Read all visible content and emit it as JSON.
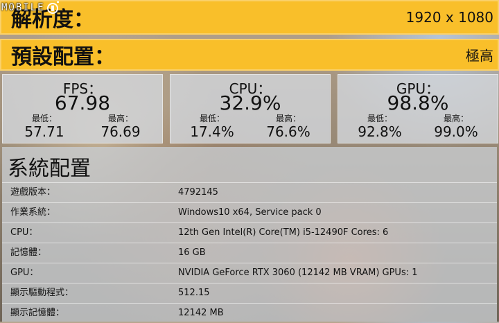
{
  "brand": {
    "logo_text": "MOBILE"
  },
  "resolution": {
    "label": "解析度：",
    "value": "1920 x 1080"
  },
  "preset": {
    "label": "預設配置：",
    "value": "極高"
  },
  "stats": {
    "fps": {
      "title": "FPS：",
      "value": "67.98",
      "min_label": "最低：",
      "min": "57.71",
      "max_label": "最高：",
      "max": "76.69"
    },
    "cpu": {
      "title": "CPU：",
      "value": "32.9%",
      "min_label": "最低：",
      "min": "17.4%",
      "max_label": "最高：",
      "max": "76.6%"
    },
    "gpu": {
      "title": "GPU：",
      "value": "98.8%",
      "min_label": "最低：",
      "min": "92.8%",
      "max_label": "最高：",
      "max": "99.0%"
    }
  },
  "system": {
    "title": "系統配置",
    "rows": [
      {
        "key": "遊戲版本：",
        "value": "4792145"
      },
      {
        "key": "作業系統：",
        "value": "Windows10 x64, Service pack 0"
      },
      {
        "key": "CPU：",
        "value": "12th Gen Intel(R) Core(TM) i5-12490F Cores: 6"
      },
      {
        "key": "記憶體：",
        "value": "16 GB"
      },
      {
        "key": "GPU：",
        "value": "NVIDIA GeForce RTX 3060 (12142 MB VRAM) GPUs: 1"
      },
      {
        "key": "顯示驅動程式：",
        "value": "512.15"
      },
      {
        "key": "顯示記憶體：",
        "value": "12142 MB"
      }
    ]
  },
  "colors": {
    "accent_bar": "#f9bf2a",
    "panel": "#c8ccd0"
  }
}
